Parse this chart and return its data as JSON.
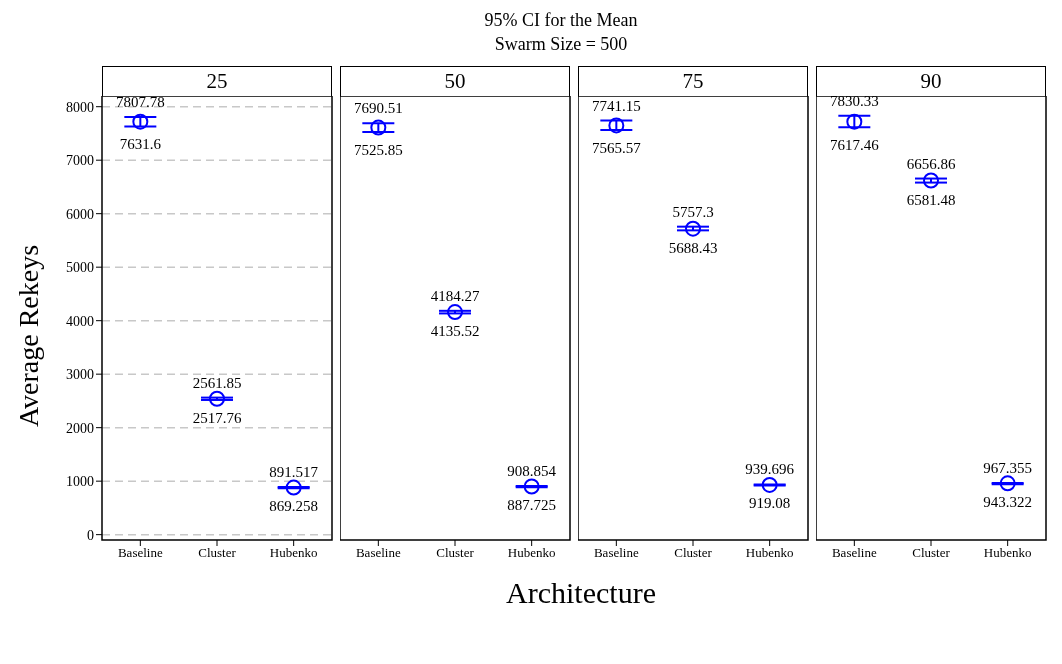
{
  "chart_data": [
    {
      "type": "scatter",
      "title": "25",
      "xlabel": "Architecture",
      "ylabel": "Average Rekeys",
      "categories": [
        "Baseline",
        "Cluster",
        "Hubenko"
      ],
      "values": [
        7720,
        2540,
        880
      ],
      "errors": [
        [
          7631.6,
          7807.78
        ],
        [
          2517.76,
          2561.85
        ],
        [
          869.258,
          891.517
        ]
      ],
      "color": "#0000ff",
      "marker": "circle",
      "ylim": [
        -100,
        8200
      ],
      "yticks": [
        0,
        1000,
        2000,
        3000,
        4000,
        5000,
        6000,
        7000,
        8000
      ],
      "grid": "y",
      "annotations": [
        "95% CI for the Mean",
        "Swarm Size = 500",
        {
          "text": "7807.78",
          "x": "Baseline",
          "y": 7807.78
        },
        {
          "text": "7631.6",
          "x": "Baseline",
          "y": 7631.6
        },
        {
          "text": "2561.85",
          "x": "Cluster",
          "y": 2561.85
        },
        {
          "text": "2517.76",
          "x": "Cluster",
          "y": 2517.76
        },
        {
          "text": "891.517",
          "x": "Hubenko",
          "y": 891.517
        },
        {
          "text": "869.258",
          "x": "Hubenko",
          "y": 869.258
        }
      ]
    },
    {
      "type": "scatter",
      "title": "50",
      "categories": [
        "Baseline",
        "Cluster",
        "Hubenko"
      ],
      "values": [
        7610,
        4160,
        900
      ],
      "errors": [
        [
          7525.85,
          7690.51
        ],
        [
          4135.52,
          4184.27
        ],
        [
          887.725,
          908.854
        ]
      ],
      "color": "#0000ff",
      "marker": "circle",
      "ylim": [
        -100,
        8200
      ],
      "yticks": [
        0,
        1000,
        2000,
        3000,
        4000,
        5000,
        6000,
        7000,
        8000
      ],
      "grid": "y",
      "tick_labels": "x",
      "annotations": [
        {
          "text": "7690.51",
          "x": "Baseline",
          "y": 7690.51
        },
        {
          "text": "7525.85",
          "x": "Baseline",
          "y": 7525.85
        },
        {
          "text": "4184.27",
          "x": "Cluster",
          "y": 4184.27
        },
        {
          "text": "4135.52",
          "x": "Cluster",
          "y": 4135.52
        },
        {
          "text": "908.854",
          "x": "Hubenko",
          "y": 908.854
        },
        {
          "text": "887.725",
          "x": "Hubenko",
          "y": 887.725
        }
      ]
    },
    {
      "type": "scatter",
      "title": "75",
      "categories": [
        "Baseline",
        "Cluster",
        "Hubenko"
      ],
      "values": [
        7650,
        5720,
        930
      ],
      "errors": [
        [
          7565.57,
          7741.15
        ],
        [
          5688.43,
          5757.3
        ],
        [
          919.08,
          939.696
        ]
      ],
      "color": "#0000ff",
      "marker": "circle",
      "ylim": [
        -100,
        8200
      ],
      "yticks": [
        0,
        1000,
        2000,
        3000,
        4000,
        5000,
        6000,
        7000,
        8000
      ],
      "grid": "y",
      "tick_labels": "x",
      "annotations": [
        {
          "text": "7741.15",
          "x": "Baseline",
          "y": 7741.15
        },
        {
          "text": "7565.57",
          "x": "Baseline",
          "y": 7565.57
        },
        {
          "text": "5757.3",
          "x": "Cluster",
          "y": 5757.3
        },
        {
          "text": "5688.43",
          "x": "Cluster",
          "y": 5688.43
        },
        {
          "text": "939.696",
          "x": "Hubenko",
          "y": 939.696
        },
        {
          "text": "919.08",
          "x": "Hubenko",
          "y": 919.08
        }
      ]
    },
    {
      "type": "scatter",
      "title": "90",
      "categories": [
        "Baseline",
        "Cluster",
        "Hubenko"
      ],
      "values": [
        7720,
        6620,
        960
      ],
      "errors": [
        [
          7617.46,
          7830.33
        ],
        [
          6581.48,
          6656.86
        ],
        [
          943.322,
          967.355
        ]
      ],
      "color": "#0000ff",
      "marker": "circle",
      "ylim": [
        -100,
        8200
      ],
      "yticks": [
        0,
        1000,
        2000,
        3000,
        4000,
        5000,
        6000,
        7000,
        8000
      ],
      "grid": "y",
      "tick_labels": "x",
      "annotations": [
        {
          "text": "7830.33",
          "x": "Baseline",
          "y": 7830.33
        },
        {
          "text": "7617.46",
          "x": "Baseline",
          "y": 7617.46
        },
        {
          "text": "6656.86",
          "x": "Cluster",
          "y": 6656.86
        },
        {
          "text": "6581.48",
          "x": "Cluster",
          "y": 6581.48
        },
        {
          "text": "967.355",
          "x": "Hubenko",
          "y": 967.355
        },
        {
          "text": "943.322",
          "x": "Hubenko",
          "y": 943.322
        }
      ]
    }
  ]
}
